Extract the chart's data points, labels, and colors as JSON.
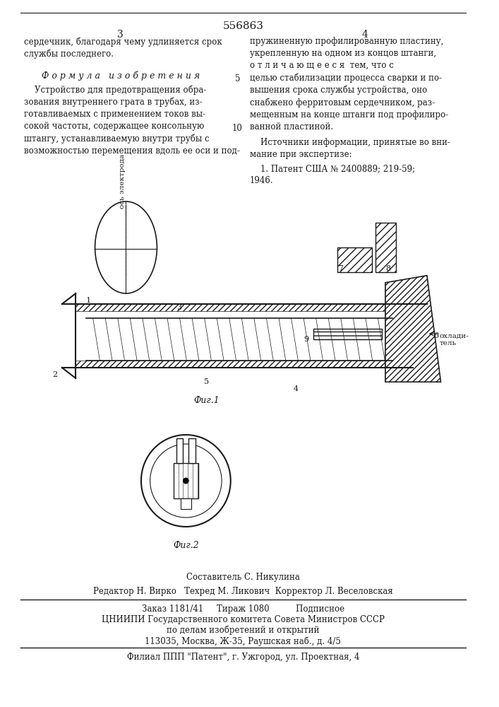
{
  "title": "556863",
  "page_col_left": "3",
  "page_col_right": "4",
  "text_col_left_top": "сердечник, благодаря чему удлиняется срок\nслужбы последнего.",
  "formula_header": "Ф о р м у л а   и з о б р е т е н и я",
  "formula_text": "    Устройство для предотвращения обра-\nзования внутреннего грата в трубах, из-\nготавливаемых с применением токов вы-\nсокой частоты, содержащее консольную\nштангу, устанавливаемую внутри трубы с\nвозможностью перемещения вдоль ее оси и под-",
  "text_col_right_top": "пружиненную профилированную пластину,\nукрепленную на одном из концов штанги,\nо т л и ч а ю щ е е с я  тем, что с\nцелью стабилизации процесса сварки и по-\nвышения срока службы устройства, оно\nснабжено ферритовым сердечником, раз-\nмещенным на конце штанги под профилиро-\nванной пластиной.",
  "line_number_5": "5",
  "line_number_10": "10",
  "sources_header": "    Источники информации, принятые во вни-\nмание при экспертизе:",
  "sources_text": "    1. Патент США № 2400889; 219-59;\n1946.",
  "fig1_label": "Фиг.1",
  "fig2_label": "Фиг.2",
  "fig1_numbers": [
    "1",
    "2",
    "3",
    "4",
    "5",
    "6",
    "7",
    "8",
    "9"
  ],
  "axis_label": "ось электрода",
  "охладитель": "охлади-\nтель",
  "footer_line1": "Составитель С. Никулина",
  "footer_line2": "Редактор Н. Вирко   Техред М. Ликович  Корректор Л. Веселовская",
  "footer_line3": "Заказ 1181/41     Тираж 1080          Подписное",
  "footer_line4": "ЦНИИПИ Государственного комитета Совета Министров СССР",
  "footer_line5": "по делам изобретений и открытий",
  "footer_line6": "113035, Москва, Ж-35, Раушская наб., д. 4/5",
  "footer_line7": "Филиал ППП \"Патент\", г. Ужгород, ул. Проектная, 4",
  "bg_color": "#ffffff",
  "text_color": "#1a1a1a",
  "line_color": "#1a1a1a",
  "hatch_color": "#333333"
}
